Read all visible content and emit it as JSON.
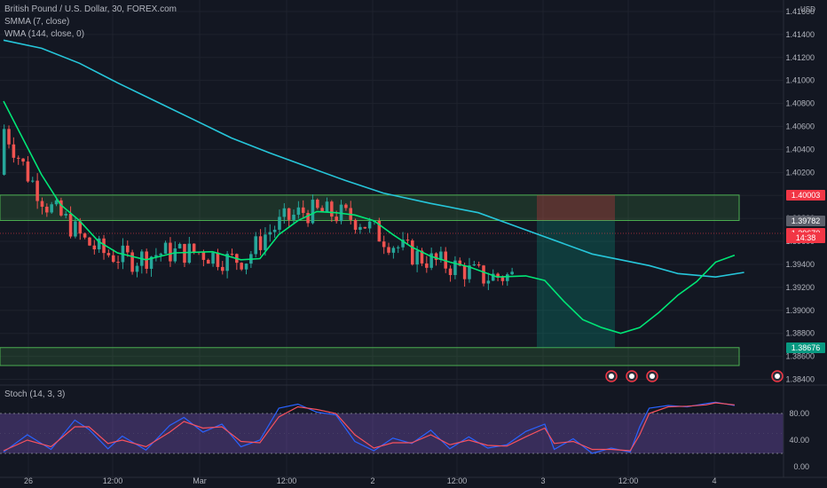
{
  "header": {
    "symbol_line": "British Pound / U.S. Dollar, 30, FOREX.com",
    "indicator_1": "SMMA (7, close)",
    "indicator_2": "WMA (144, close, 0)",
    "currency": "USD"
  },
  "oscillator": {
    "label": "Stoch (14, 3, 3)",
    "ticks": [
      "80.00",
      "40.00",
      "0.00"
    ],
    "band_upper": 80,
    "band_lower": 20
  },
  "price_axis": {
    "ticks": [
      "1.41600",
      "1.41400",
      "1.41200",
      "1.41000",
      "1.40800",
      "1.40600",
      "1.40400",
      "1.40200",
      "1.40000",
      "1.39800",
      "1.39600",
      "1.39400",
      "1.39200",
      "1.39000",
      "1.38800",
      "1.38600",
      "1.38400"
    ],
    "tags": [
      {
        "label": "1.40003",
        "price": 1.40003,
        "color": "#f23645"
      },
      {
        "label": "1.39782",
        "price": 1.39782,
        "color": "#5d606b"
      },
      {
        "label": "1.39670",
        "price": 1.3967,
        "color": "#f23645"
      },
      {
        "label": "14:38",
        "price": 1.39635,
        "color": "#f23645"
      },
      {
        "label": "1.38676",
        "price": 1.38676,
        "color": "#089981"
      }
    ]
  },
  "time_axis": {
    "labels": [
      "26",
      "12:00",
      "Mar",
      "12:00",
      "2",
      "12:00",
      "3",
      "12:00",
      "4"
    ]
  },
  "chart_data": {
    "type": "candlestick",
    "symbol": "GBPUSD",
    "timeframe": "30",
    "ylim": [
      1.3835,
      1.417
    ],
    "last_price": 1.3967,
    "zones": [
      {
        "type": "resistance",
        "top": 1.40003,
        "bottom": 1.39782,
        "color": "#4caf50"
      },
      {
        "type": "support",
        "top": 1.38676,
        "bottom": 1.3852,
        "color": "#4caf50"
      }
    ],
    "position": {
      "type": "short",
      "stop_top": 1.40003,
      "entry": 1.39782,
      "target": 1.38676
    },
    "series": [
      {
        "name": "WMA (144, close, 0)",
        "color": "#26c6da",
        "points": [
          [
            0,
            1.4135
          ],
          [
            8,
            1.4128
          ],
          [
            16,
            1.4115
          ],
          [
            24,
            1.4098
          ],
          [
            32,
            1.4082
          ],
          [
            40,
            1.4066
          ],
          [
            48,
            1.405
          ],
          [
            56,
            1.4037
          ],
          [
            64,
            1.4025
          ],
          [
            72,
            1.4013
          ],
          [
            80,
            1.4002
          ],
          [
            90,
            1.3993
          ],
          [
            100,
            1.3985
          ],
          [
            112,
            1.3967
          ],
          [
            124,
            1.3949
          ],
          [
            136,
            1.3939
          ],
          [
            142,
            1.3932
          ],
          [
            150,
            1.3929
          ],
          [
            156,
            1.3933
          ]
        ]
      },
      {
        "name": "SMMA (7, close)",
        "color": "#00e676",
        "points": [
          [
            0,
            1.4082
          ],
          [
            4,
            1.405
          ],
          [
            8,
            1.4018
          ],
          [
            12,
            1.3992
          ],
          [
            16,
            1.3978
          ],
          [
            20,
            1.396
          ],
          [
            24,
            1.395
          ],
          [
            30,
            1.3944
          ],
          [
            36,
            1.395
          ],
          [
            44,
            1.3951
          ],
          [
            50,
            1.3944
          ],
          [
            54,
            1.3945
          ],
          [
            58,
            1.3966
          ],
          [
            62,
            1.3978
          ],
          [
            66,
            1.3986
          ],
          [
            70,
            1.3985
          ],
          [
            74,
            1.3983
          ],
          [
            78,
            1.3978
          ],
          [
            82,
            1.3966
          ],
          [
            86,
            1.3955
          ],
          [
            90,
            1.3947
          ],
          [
            94,
            1.3942
          ],
          [
            98,
            1.3938
          ],
          [
            104,
            1.3929
          ],
          [
            110,
            1.393
          ],
          [
            114,
            1.3926
          ],
          [
            118,
            1.3908
          ],
          [
            122,
            1.3892
          ],
          [
            126,
            1.3885
          ],
          [
            130,
            1.388
          ],
          [
            134,
            1.3885
          ],
          [
            138,
            1.3898
          ],
          [
            142,
            1.3913
          ],
          [
            146,
            1.3925
          ],
          [
            150,
            1.3942
          ],
          [
            154,
            1.3948
          ]
        ]
      }
    ],
    "stoch_series": [
      {
        "name": "%K",
        "color": "#2962ff",
        "points": [
          [
            0,
            22
          ],
          [
            5,
            48
          ],
          [
            10,
            26
          ],
          [
            15,
            70
          ],
          [
            18,
            56
          ],
          [
            22,
            27
          ],
          [
            25,
            46
          ],
          [
            30,
            25
          ],
          [
            35,
            62
          ],
          [
            38,
            74
          ],
          [
            42,
            52
          ],
          [
            46,
            64
          ],
          [
            50,
            30
          ],
          [
            54,
            40
          ],
          [
            58,
            88
          ],
          [
            62,
            94
          ],
          [
            66,
            82
          ],
          [
            70,
            78
          ],
          [
            74,
            38
          ],
          [
            78,
            24
          ],
          [
            82,
            43
          ],
          [
            86,
            35
          ],
          [
            90,
            55
          ],
          [
            94,
            27
          ],
          [
            98,
            45
          ],
          [
            102,
            28
          ],
          [
            106,
            33
          ],
          [
            110,
            53
          ],
          [
            114,
            64
          ],
          [
            116,
            26
          ],
          [
            120,
            42
          ],
          [
            124,
            20
          ],
          [
            128,
            28
          ],
          [
            132,
            22
          ],
          [
            134,
            60
          ],
          [
            136,
            88
          ],
          [
            140,
            92
          ],
          [
            144,
            90
          ],
          [
            148,
            95
          ],
          [
            150,
            97
          ],
          [
            154,
            92
          ]
        ]
      },
      {
        "name": "%D",
        "color": "#f7525f",
        "points": [
          [
            0,
            24
          ],
          [
            5,
            40
          ],
          [
            10,
            30
          ],
          [
            15,
            60
          ],
          [
            18,
            60
          ],
          [
            22,
            35
          ],
          [
            25,
            40
          ],
          [
            30,
            30
          ],
          [
            35,
            52
          ],
          [
            38,
            68
          ],
          [
            42,
            58
          ],
          [
            46,
            60
          ],
          [
            50,
            38
          ],
          [
            54,
            36
          ],
          [
            58,
            75
          ],
          [
            62,
            90
          ],
          [
            66,
            86
          ],
          [
            70,
            80
          ],
          [
            74,
            48
          ],
          [
            78,
            28
          ],
          [
            82,
            36
          ],
          [
            86,
            36
          ],
          [
            90,
            48
          ],
          [
            94,
            33
          ],
          [
            98,
            40
          ],
          [
            102,
            32
          ],
          [
            106,
            31
          ],
          [
            110,
            45
          ],
          [
            114,
            58
          ],
          [
            116,
            35
          ],
          [
            120,
            38
          ],
          [
            124,
            26
          ],
          [
            128,
            26
          ],
          [
            132,
            24
          ],
          [
            134,
            48
          ],
          [
            136,
            80
          ],
          [
            140,
            90
          ],
          [
            144,
            91
          ],
          [
            148,
            93
          ],
          [
            150,
            96
          ],
          [
            154,
            93
          ]
        ]
      }
    ]
  }
}
